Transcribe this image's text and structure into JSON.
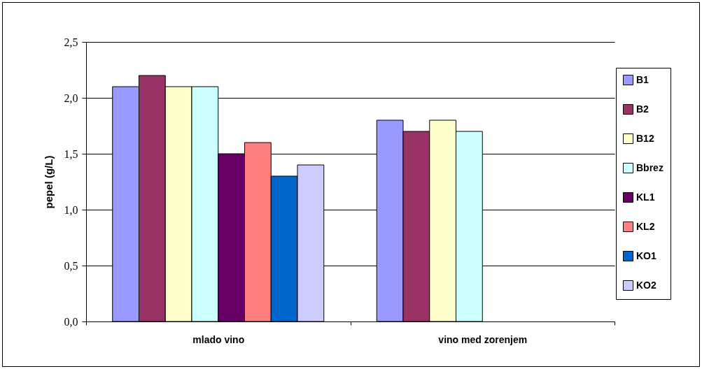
{
  "chart_data": {
    "type": "bar",
    "ylabel": "pepel (g/L)",
    "categories": [
      "mlado vino",
      "vino med zorenjem"
    ],
    "series": [
      {
        "name": "B1",
        "color": "#9999ff",
        "values": [
          2.1,
          1.8
        ]
      },
      {
        "name": "B2",
        "color": "#993366",
        "values": [
          2.2,
          1.7
        ]
      },
      {
        "name": "B12",
        "color": "#ffffcc",
        "values": [
          2.1,
          1.8
        ]
      },
      {
        "name": "Bbrez",
        "color": "#ccffff",
        "values": [
          2.1,
          1.7
        ]
      },
      {
        "name": "KL1",
        "color": "#660066",
        "values": [
          1.5,
          null
        ]
      },
      {
        "name": "KL2",
        "color": "#ff8080",
        "values": [
          1.6,
          null
        ]
      },
      {
        "name": "KO1",
        "color": "#0066cc",
        "values": [
          1.3,
          null
        ]
      },
      {
        "name": "KO2",
        "color": "#ccccff",
        "values": [
          1.4,
          null
        ]
      }
    ],
    "ylim": [
      0,
      2.5
    ],
    "yticks": [
      {
        "value": 0,
        "label": "0,0"
      },
      {
        "value": 0.5,
        "label": "0,5"
      },
      {
        "value": 1,
        "label": "1,0"
      },
      {
        "value": 1.5,
        "label": "1,5"
      },
      {
        "value": 2,
        "label": "2,0"
      },
      {
        "value": 2.5,
        "label": "2,5"
      }
    ],
    "grid": "y",
    "legend": "right"
  }
}
